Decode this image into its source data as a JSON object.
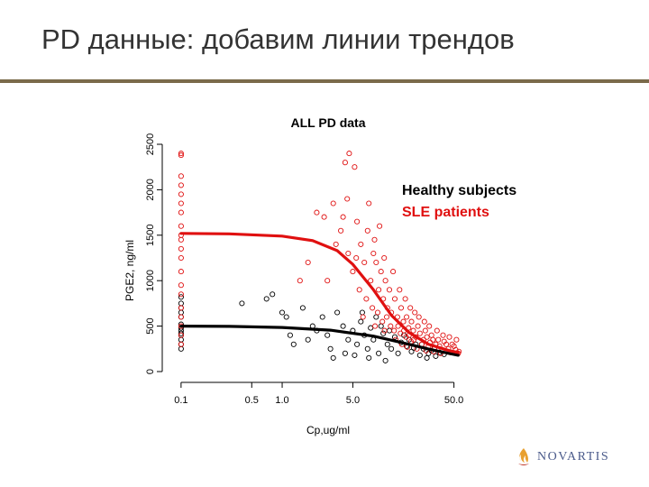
{
  "slide": {
    "title": "PD данные: добавим линии трендов"
  },
  "logo": {
    "text": "NOVARTIS",
    "icon": "novartis-flame-icon",
    "color": "#4a5a8a"
  },
  "colors": {
    "healthy": "#000000",
    "sle": "#e01010",
    "accent_rule": "#7a6a4a"
  },
  "chart_data": {
    "type": "scatter",
    "title": "ALL PD data",
    "xlabel": "Cp,ug/ml",
    "ylabel": "PGE2, ng/ml",
    "x_scale": "log",
    "xlim": [
      0.08,
      70
    ],
    "ylim": [
      0,
      2500
    ],
    "x_ticks": [
      0.1,
      0.5,
      1.0,
      5.0,
      50.0
    ],
    "x_tick_labels": [
      "0.1",
      "0.5",
      "1.0",
      "5.0",
      "50.0"
    ],
    "y_ticks": [
      0,
      500,
      1000,
      1500,
      2000,
      2500
    ],
    "y_tick_labels": [
      "0",
      "500",
      "1000",
      "1500",
      "2000",
      "2500"
    ],
    "legend_position": "top-right",
    "series": [
      {
        "name": "Healthy subjects",
        "color": "#000000",
        "trend": [
          [
            0.1,
            500
          ],
          [
            0.3,
            497
          ],
          [
            1,
            485
          ],
          [
            3,
            455
          ],
          [
            8,
            390
          ],
          [
            15,
            320
          ],
          [
            30,
            240
          ],
          [
            55,
            180
          ]
        ],
        "points": [
          [
            0.1,
            300
          ],
          [
            0.1,
            350
          ],
          [
            0.1,
            400
          ],
          [
            0.1,
            420
          ],
          [
            0.1,
            450
          ],
          [
            0.1,
            480
          ],
          [
            0.1,
            520
          ],
          [
            0.1,
            600
          ],
          [
            0.1,
            650
          ],
          [
            0.1,
            700
          ],
          [
            0.1,
            750
          ],
          [
            0.1,
            820
          ],
          [
            0.1,
            250
          ],
          [
            0.4,
            750
          ],
          [
            0.7,
            800
          ],
          [
            0.8,
            850
          ],
          [
            1.0,
            650
          ],
          [
            1.1,
            600
          ],
          [
            1.2,
            400
          ],
          [
            1.3,
            300
          ],
          [
            1.6,
            700
          ],
          [
            1.8,
            350
          ],
          [
            2.0,
            500
          ],
          [
            2.2,
            450
          ],
          [
            2.5,
            600
          ],
          [
            2.8,
            400
          ],
          [
            3.0,
            250
          ],
          [
            3.5,
            650
          ],
          [
            4.0,
            500
          ],
          [
            4.5,
            350
          ],
          [
            5.0,
            450
          ],
          [
            5.5,
            300
          ],
          [
            6.0,
            550
          ],
          [
            6.5,
            400
          ],
          [
            7.0,
            250
          ],
          [
            7.5,
            480
          ],
          [
            8.0,
            350
          ],
          [
            9.0,
            200
          ],
          [
            10.0,
            420
          ],
          [
            11.0,
            300
          ],
          [
            12.0,
            250
          ],
          [
            13.0,
            380
          ],
          [
            14.0,
            200
          ],
          [
            15.0,
            320
          ],
          [
            17.0,
            280
          ],
          [
            19.0,
            220
          ],
          [
            21.0,
            300
          ],
          [
            23.0,
            180
          ],
          [
            25.0,
            250
          ],
          [
            28.0,
            200
          ],
          [
            30.0,
            230
          ],
          [
            33.0,
            170
          ],
          [
            36.0,
            210
          ],
          [
            40.0,
            190
          ],
          [
            6.2,
            650
          ],
          [
            8.5,
            600
          ],
          [
            9.5,
            500
          ],
          [
            11.5,
            450
          ],
          [
            16.0,
            400
          ],
          [
            18.0,
            350
          ],
          [
            20.0,
            260
          ],
          [
            24.0,
            300
          ],
          [
            27.0,
            150
          ],
          [
            32.0,
            260
          ],
          [
            3.2,
            150
          ],
          [
            4.2,
            200
          ],
          [
            5.2,
            180
          ],
          [
            7.2,
            150
          ],
          [
            10.5,
            120
          ]
        ]
      },
      {
        "name": "SLE patients",
        "color": "#e01010",
        "trend": [
          [
            0.1,
            1520
          ],
          [
            0.3,
            1515
          ],
          [
            1,
            1490
          ],
          [
            2,
            1440
          ],
          [
            3.5,
            1330
          ],
          [
            5,
            1180
          ],
          [
            8,
            900
          ],
          [
            12,
            620
          ],
          [
            18,
            430
          ],
          [
            28,
            300
          ],
          [
            45,
            230
          ],
          [
            55,
            210
          ]
        ],
        "points": [
          [
            0.1,
            2400
          ],
          [
            0.1,
            2380
          ],
          [
            0.1,
            2150
          ],
          [
            0.1,
            2050
          ],
          [
            0.1,
            1950
          ],
          [
            0.1,
            1850
          ],
          [
            0.1,
            1750
          ],
          [
            0.1,
            1600
          ],
          [
            0.1,
            1500
          ],
          [
            0.1,
            1450
          ],
          [
            0.1,
            1350
          ],
          [
            0.1,
            1250
          ],
          [
            0.1,
            1100
          ],
          [
            0.1,
            950
          ],
          [
            0.1,
            850
          ],
          [
            0.1,
            700
          ],
          [
            0.1,
            600
          ],
          [
            0.1,
            500
          ],
          [
            0.1,
            400
          ],
          [
            0.1,
            300
          ],
          [
            1.5,
            1000
          ],
          [
            1.8,
            1200
          ],
          [
            2.2,
            1750
          ],
          [
            2.6,
            1700
          ],
          [
            3.2,
            1850
          ],
          [
            3.8,
            1550
          ],
          [
            4.2,
            2300
          ],
          [
            4.6,
            2400
          ],
          [
            5.2,
            2250
          ],
          [
            4.0,
            1700
          ],
          [
            4.5,
            1300
          ],
          [
            5.0,
            1100
          ],
          [
            5.5,
            1650
          ],
          [
            6.0,
            1400
          ],
          [
            6.5,
            1200
          ],
          [
            7.0,
            1550
          ],
          [
            7.5,
            1000
          ],
          [
            8.0,
            1300
          ],
          [
            8.5,
            1200
          ],
          [
            9.0,
            900
          ],
          [
            9.5,
            1100
          ],
          [
            10.0,
            800
          ],
          [
            10.5,
            1000
          ],
          [
            11.0,
            700
          ],
          [
            11.5,
            900
          ],
          [
            12.0,
            650
          ],
          [
            13.0,
            800
          ],
          [
            14.0,
            500
          ],
          [
            15.0,
            700
          ],
          [
            16.0,
            450
          ],
          [
            17.0,
            600
          ],
          [
            18.0,
            400
          ],
          [
            19.0,
            550
          ],
          [
            20.0,
            350
          ],
          [
            22.0,
            500
          ],
          [
            24.0,
            300
          ],
          [
            26.0,
            450
          ],
          [
            28.0,
            280
          ],
          [
            30.0,
            400
          ],
          [
            32.0,
            250
          ],
          [
            35.0,
            350
          ],
          [
            38.0,
            230
          ],
          [
            42.0,
            300
          ],
          [
            46.0,
            210
          ],
          [
            50.0,
            280
          ],
          [
            55.0,
            200
          ],
          [
            5.8,
            900
          ],
          [
            6.8,
            800
          ],
          [
            7.8,
            700
          ],
          [
            8.8,
            650
          ],
          [
            9.8,
            550
          ],
          [
            10.8,
            600
          ],
          [
            11.8,
            500
          ],
          [
            12.8,
            450
          ],
          [
            13.8,
            600
          ],
          [
            14.8,
            420
          ],
          [
            15.8,
            550
          ],
          [
            16.8,
            380
          ],
          [
            17.8,
            480
          ],
          [
            18.8,
            330
          ],
          [
            19.8,
            450
          ],
          [
            21.0,
            380
          ],
          [
            23.0,
            420
          ],
          [
            25.0,
            350
          ],
          [
            27.0,
            380
          ],
          [
            29.0,
            320
          ],
          [
            31.0,
            350
          ],
          [
            33.0,
            300
          ],
          [
            36.0,
            280
          ],
          [
            40.0,
            330
          ],
          [
            44.0,
            250
          ],
          [
            48.0,
            300
          ],
          [
            52.0,
            240
          ],
          [
            56.0,
            220
          ],
          [
            2.8,
            1000
          ],
          [
            3.4,
            1400
          ],
          [
            4.4,
            1900
          ],
          [
            5.4,
            1250
          ],
          [
            7.2,
            1850
          ],
          [
            8.2,
            1450
          ],
          [
            9.2,
            1600
          ],
          [
            10.2,
            1250
          ],
          [
            12.5,
            1100
          ],
          [
            14.5,
            900
          ],
          [
            16.5,
            800
          ],
          [
            18.5,
            700
          ],
          [
            20.5,
            650
          ],
          [
            22.5,
            600
          ],
          [
            25.5,
            550
          ],
          [
            28.5,
            500
          ],
          [
            34.0,
            450
          ],
          [
            39.0,
            400
          ],
          [
            45.0,
            380
          ],
          [
            53.0,
            350
          ],
          [
            6.3,
            600
          ],
          [
            8.3,
            500
          ],
          [
            10.3,
            450
          ],
          [
            13.3,
            350
          ],
          [
            15.3,
            300
          ],
          [
            17.3,
            270
          ],
          [
            21.5,
            250
          ],
          [
            26.5,
            230
          ],
          [
            31.5,
            220
          ],
          [
            37.0,
            200
          ]
        ]
      }
    ]
  }
}
